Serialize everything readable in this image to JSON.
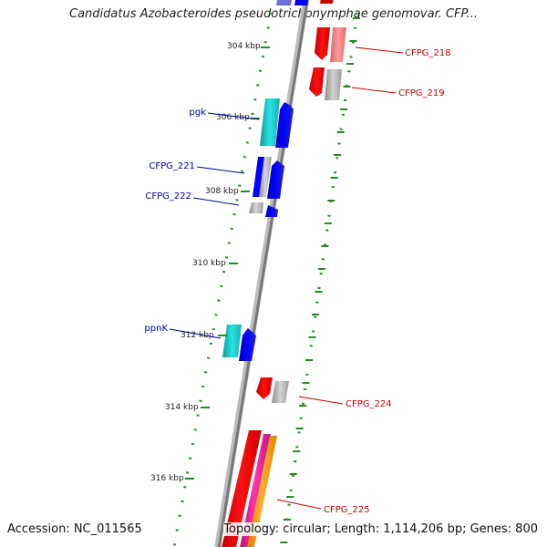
{
  "title": "Candidatus Azobacteroides pseudotrichonymphae genomovar. CFP...",
  "footer": {
    "accession": "Accession: NC_011565",
    "summary": "Topology: circular; Length: 1,114,206 bp; Genes: 800"
  },
  "kbp_ticks": [
    {
      "label": "304 kbp",
      "kb": 304
    },
    {
      "label": "306 kbp",
      "kb": 306
    },
    {
      "label": "308 kbp",
      "kb": 308
    },
    {
      "label": "310 kbp",
      "kb": 310
    },
    {
      "label": "312 kbp",
      "kb": 312
    },
    {
      "label": "314 kbp",
      "kb": 314
    },
    {
      "label": "316 kbp",
      "kb": 316
    }
  ],
  "gene_labels": [
    {
      "name": "CFPG_218",
      "strand": "reverse",
      "color": "#cc0000"
    },
    {
      "name": "CFPG_219",
      "strand": "reverse",
      "color": "#cc0000"
    },
    {
      "name": "pgk",
      "strand": "forward",
      "color": "#000099"
    },
    {
      "name": "CFPG_221",
      "strand": "forward",
      "color": "#000099"
    },
    {
      "name": "CFPG_222",
      "strand": "forward",
      "color": "#000099"
    },
    {
      "name": "ppnK",
      "strand": "forward",
      "color": "#000099"
    },
    {
      "name": "CFPG_224",
      "strand": "reverse",
      "color": "#cc0000"
    },
    {
      "name": "CFPG_225",
      "strand": "reverse",
      "color": "#cc0000"
    }
  ],
  "colors": {
    "forward_cds": "#0000ff",
    "forward_cds_alt": "#1fd3d3",
    "reverse_cds": "#ff0000",
    "reverse_cds_alt": "#f08080",
    "rna_magenta": "#e0209a",
    "rna_orange": "#ff9900",
    "pseudo_gray": "#aaaaaa",
    "tick_green": "#228b22",
    "backbone": "#888888"
  }
}
